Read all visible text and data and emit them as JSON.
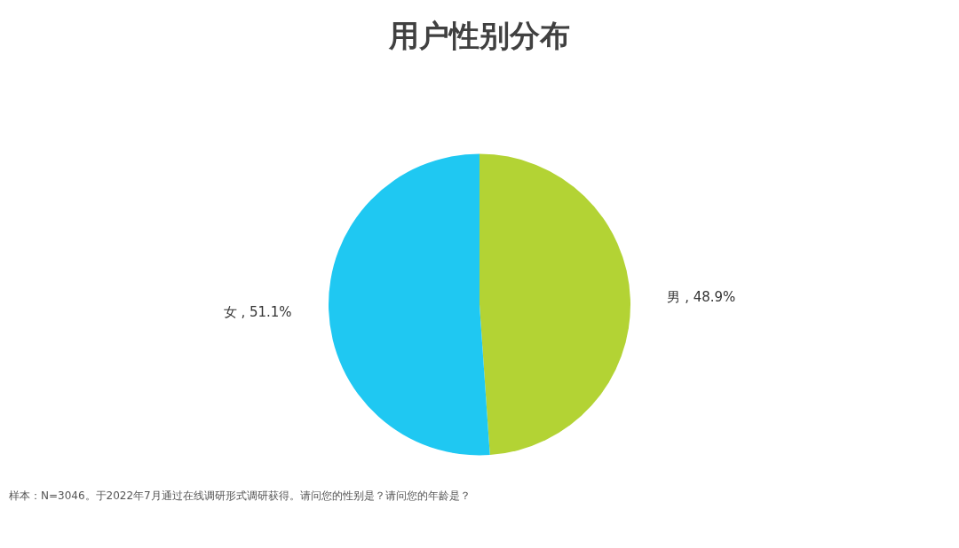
{
  "chart_data": {
    "type": "pie",
    "title": "用户性别分布",
    "categories": [
      "男",
      "女"
    ],
    "values": [
      48.9,
      51.1
    ],
    "colors": [
      "#b3d334",
      "#1fc8f2"
    ],
    "value_labels": [
      ", 48.9%",
      ", 51.1%"
    ],
    "annotations": [
      "样本：N=3046。于2022年7月通过在线调研形式调研获得。请问您的性别是？请问您的年龄是？"
    ]
  }
}
